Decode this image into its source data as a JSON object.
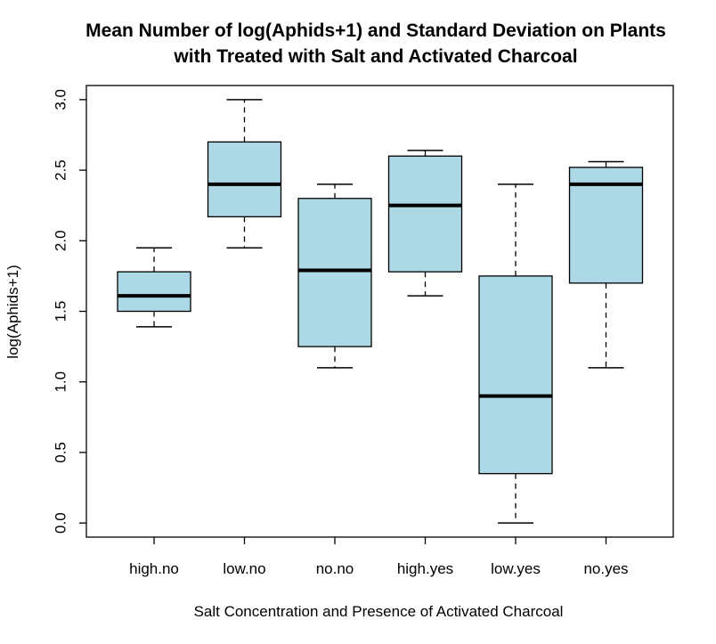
{
  "chart_data": {
    "type": "boxplot",
    "title_lines": [
      "Mean Number of log(Aphids+1) and Standard Deviation on Plants",
      "with Treated with Salt and Activated Charcoal"
    ],
    "xlabel": "Salt Concentration and Presence of Activated Charcoal",
    "ylabel": "log(Aphids+1)",
    "ylim": [
      -0.1,
      3.1
    ],
    "yticks": [
      "0.0",
      "0.5",
      "1.0",
      "1.5",
      "2.0",
      "2.5",
      "3.0"
    ],
    "categories": [
      "high.no",
      "low.no",
      "no.no",
      "high.yes",
      "low.yes",
      "no.yes"
    ],
    "boxes": [
      {
        "category": "high.no",
        "whisker_low": 1.39,
        "q1": 1.5,
        "median": 1.61,
        "q3": 1.78,
        "whisker_high": 1.95
      },
      {
        "category": "low.no",
        "whisker_low": 1.95,
        "q1": 2.17,
        "median": 2.4,
        "q3": 2.7,
        "whisker_high": 3.0
      },
      {
        "category": "no.no",
        "whisker_low": 1.1,
        "q1": 1.25,
        "median": 1.79,
        "q3": 2.3,
        "whisker_high": 2.4
      },
      {
        "category": "high.yes",
        "whisker_low": 1.61,
        "q1": 1.78,
        "median": 2.25,
        "q3": 2.6,
        "whisker_high": 2.64
      },
      {
        "category": "low.yes",
        "whisker_low": 0.0,
        "q1": 0.35,
        "median": 0.9,
        "q3": 1.75,
        "whisker_high": 2.4
      },
      {
        "category": "no.yes",
        "whisker_low": 1.1,
        "q1": 1.7,
        "median": 2.4,
        "q3": 2.52,
        "whisker_high": 2.56
      }
    ],
    "colors": {
      "box_fill": "#add8e6",
      "line": "#000000",
      "background": "#ffffff"
    },
    "grid": false,
    "legend": "none"
  }
}
